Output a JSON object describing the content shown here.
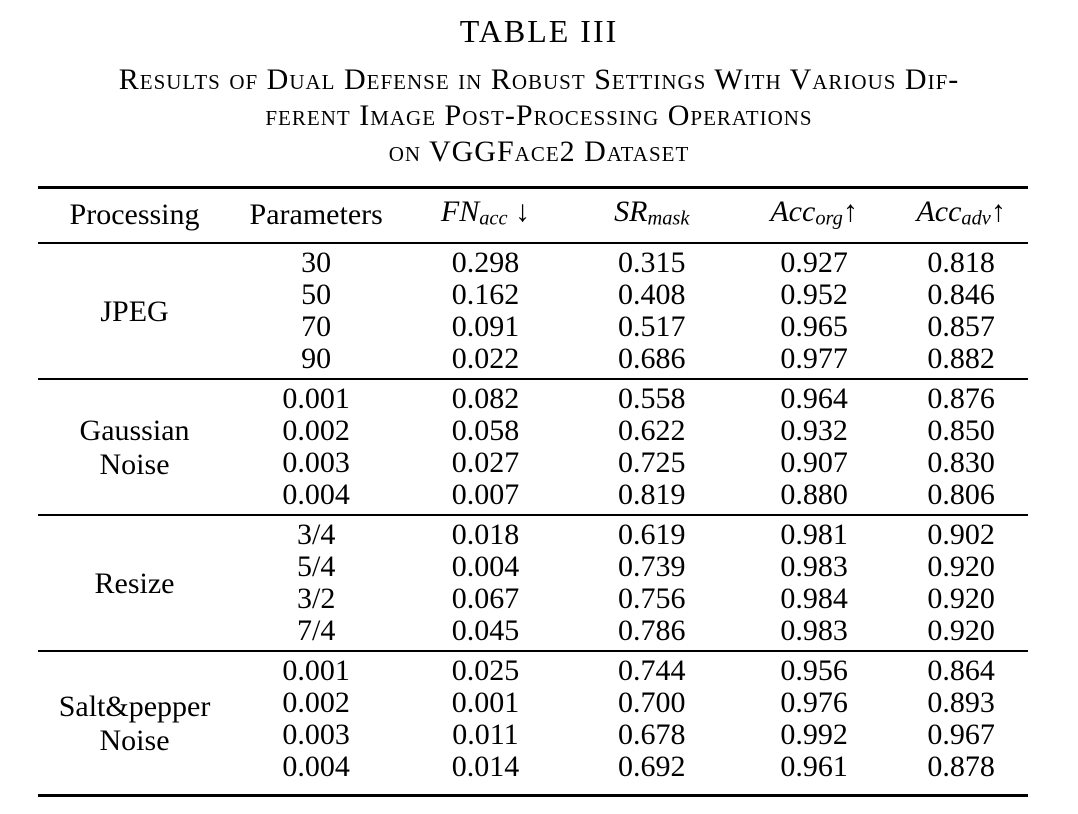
{
  "page": {
    "background_color": "#ffffff",
    "text_color": "#000000"
  },
  "title": "TABLE III",
  "caption": {
    "line1": "Results of Dual Defense in Robust Settings With Various Dif-",
    "line2": "ferent Image Post-Processing Operations",
    "line3": "on VGGFace2 Dataset"
  },
  "table": {
    "headers": {
      "processing": "Processing",
      "parameters": "Parameters",
      "fn": {
        "base": "FN",
        "sub": "acc",
        "arrow": " ↓"
      },
      "sr": {
        "base": "SR",
        "sub": "mask",
        "arrow": ""
      },
      "accorg": {
        "base": "Acc",
        "sub": "org",
        "arrow": "↑"
      },
      "accadv": {
        "base": "Acc",
        "sub": "adv",
        "arrow": "↑"
      }
    },
    "groups": [
      {
        "label1": "JPEG",
        "label2": "",
        "rows": [
          {
            "param": "30",
            "fn": "0.298",
            "sr": "0.315",
            "accorg": "0.927",
            "accadv": "0.818"
          },
          {
            "param": "50",
            "fn": "0.162",
            "sr": "0.408",
            "accorg": "0.952",
            "accadv": "0.846"
          },
          {
            "param": "70",
            "fn": "0.091",
            "sr": "0.517",
            "accorg": "0.965",
            "accadv": "0.857"
          },
          {
            "param": "90",
            "fn": "0.022",
            "sr": "0.686",
            "accorg": "0.977",
            "accadv": "0.882"
          }
        ]
      },
      {
        "label1": "Gaussian",
        "label2": "Noise",
        "rows": [
          {
            "param": "0.001",
            "fn": "0.082",
            "sr": "0.558",
            "accorg": "0.964",
            "accadv": "0.876"
          },
          {
            "param": "0.002",
            "fn": "0.058",
            "sr": "0.622",
            "accorg": "0.932",
            "accadv": "0.850"
          },
          {
            "param": "0.003",
            "fn": "0.027",
            "sr": "0.725",
            "accorg": "0.907",
            "accadv": "0.830"
          },
          {
            "param": "0.004",
            "fn": "0.007",
            "sr": "0.819",
            "accorg": "0.880",
            "accadv": "0.806"
          }
        ]
      },
      {
        "label1": "Resize",
        "label2": "",
        "rows": [
          {
            "param": "3/4",
            "fn": "0.018",
            "sr": "0.619",
            "accorg": "0.981",
            "accadv": "0.902"
          },
          {
            "param": "5/4",
            "fn": "0.004",
            "sr": "0.739",
            "accorg": "0.983",
            "accadv": "0.920"
          },
          {
            "param": "3/2",
            "fn": "0.067",
            "sr": "0.756",
            "accorg": "0.984",
            "accadv": "0.920"
          },
          {
            "param": "7/4",
            "fn": "0.045",
            "sr": "0.786",
            "accorg": "0.983",
            "accadv": "0.920"
          }
        ]
      },
      {
        "label1": "Salt&pepper",
        "label2": "Noise",
        "rows": [
          {
            "param": "0.001",
            "fn": "0.025",
            "sr": "0.744",
            "accorg": "0.956",
            "accadv": "0.864"
          },
          {
            "param": "0.002",
            "fn": "0.001",
            "sr": "0.700",
            "accorg": "0.976",
            "accadv": "0.893"
          },
          {
            "param": "0.003",
            "fn": "0.011",
            "sr": "0.678",
            "accorg": "0.992",
            "accadv": "0.967"
          },
          {
            "param": "0.004",
            "fn": "0.014",
            "sr": "0.692",
            "accorg": "0.961",
            "accadv": "0.878"
          }
        ]
      }
    ]
  }
}
